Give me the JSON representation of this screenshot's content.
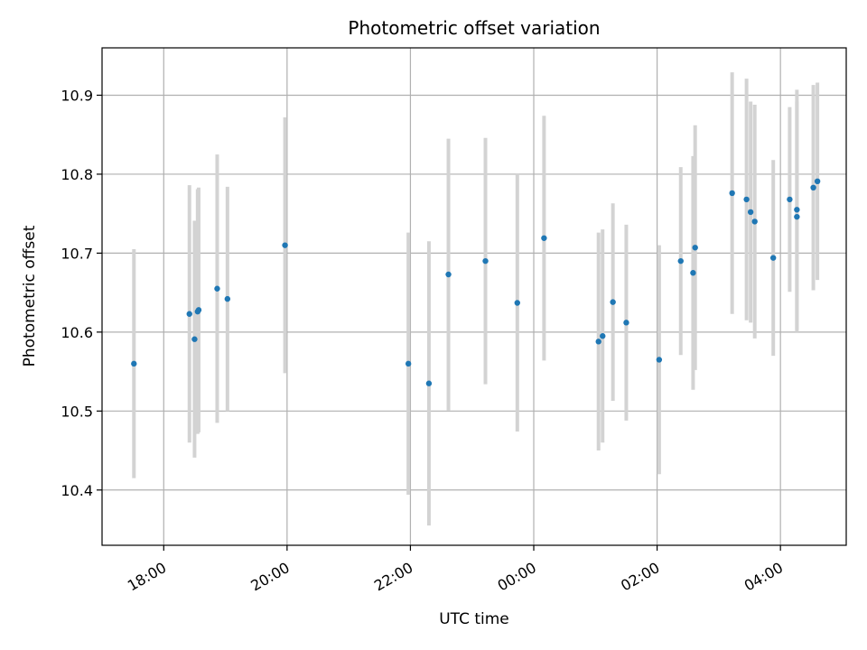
{
  "chart_data": {
    "type": "scatter",
    "title": "Photometric offset variation",
    "xlabel": "UTC time",
    "ylabel": "Photometric offset",
    "x_is_time": true,
    "xlim": [
      "17:00",
      "29:04"
    ],
    "ylim": [
      10.33,
      10.96
    ],
    "x_ticks": [
      "18:00",
      "20:00",
      "22:00",
      "00:00",
      "02:00",
      "04:00"
    ],
    "y_ticks": [
      10.4,
      10.5,
      10.6,
      10.7,
      10.8,
      10.9
    ],
    "grid": true,
    "colors": {
      "point": "#1f77b4",
      "errorbar": "#d3d3d3",
      "grid": "#b0b0b0",
      "axis": "#000000"
    },
    "points": [
      {
        "x": "17:31",
        "y": 10.56,
        "yerr": 0.145
      },
      {
        "x": "18:25",
        "y": 10.623,
        "yerr": 0.163
      },
      {
        "x": "18:30",
        "y": 10.591,
        "yerr": 0.15
      },
      {
        "x": "18:33",
        "y": 10.626,
        "yerr": 0.155
      },
      {
        "x": "18:34",
        "y": 10.628,
        "yerr": 0.155
      },
      {
        "x": "18:52",
        "y": 10.655,
        "yerr": 0.17
      },
      {
        "x": "19:02",
        "y": 10.642,
        "yerr": 0.142
      },
      {
        "x": "19:58",
        "y": 10.71,
        "yerr": 0.162
      },
      {
        "x": "21:58",
        "y": 10.56,
        "yerr": 0.166
      },
      {
        "x": "22:18",
        "y": 10.535,
        "yerr": 0.18
      },
      {
        "x": "22:37",
        "y": 10.673,
        "yerr": 0.172
      },
      {
        "x": "23:13",
        "y": 10.69,
        "yerr": 0.156
      },
      {
        "x": "23:44",
        "y": 10.637,
        "yerr": 0.163
      },
      {
        "x": "24:10",
        "y": 10.719,
        "yerr": 0.155
      },
      {
        "x": "25:03",
        "y": 10.588,
        "yerr": 0.138
      },
      {
        "x": "25:07",
        "y": 10.595,
        "yerr": 0.135
      },
      {
        "x": "25:17",
        "y": 10.638,
        "yerr": 0.125
      },
      {
        "x": "25:30",
        "y": 10.612,
        "yerr": 0.124
      },
      {
        "x": "26:02",
        "y": 10.565,
        "yerr": 0.145
      },
      {
        "x": "26:23",
        "y": 10.69,
        "yerr": 0.119
      },
      {
        "x": "26:35",
        "y": 10.675,
        "yerr": 0.148
      },
      {
        "x": "26:37",
        "y": 10.707,
        "yerr": 0.155
      },
      {
        "x": "27:13",
        "y": 10.776,
        "yerr": 0.153
      },
      {
        "x": "27:27",
        "y": 10.768,
        "yerr": 0.153
      },
      {
        "x": "27:31",
        "y": 10.752,
        "yerr": 0.14
      },
      {
        "x": "27:35",
        "y": 10.74,
        "yerr": 0.148
      },
      {
        "x": "27:53",
        "y": 10.694,
        "yerr": 0.124
      },
      {
        "x": "28:09",
        "y": 10.768,
        "yerr": 0.117
      },
      {
        "x": "28:16",
        "y": 10.746,
        "yerr": 0.146
      },
      {
        "x": "28:16",
        "y": 10.755,
        "yerr": 0.152
      },
      {
        "x": "28:32",
        "y": 10.783,
        "yerr": 0.13
      },
      {
        "x": "28:36",
        "y": 10.791,
        "yerr": 0.125
      }
    ]
  }
}
